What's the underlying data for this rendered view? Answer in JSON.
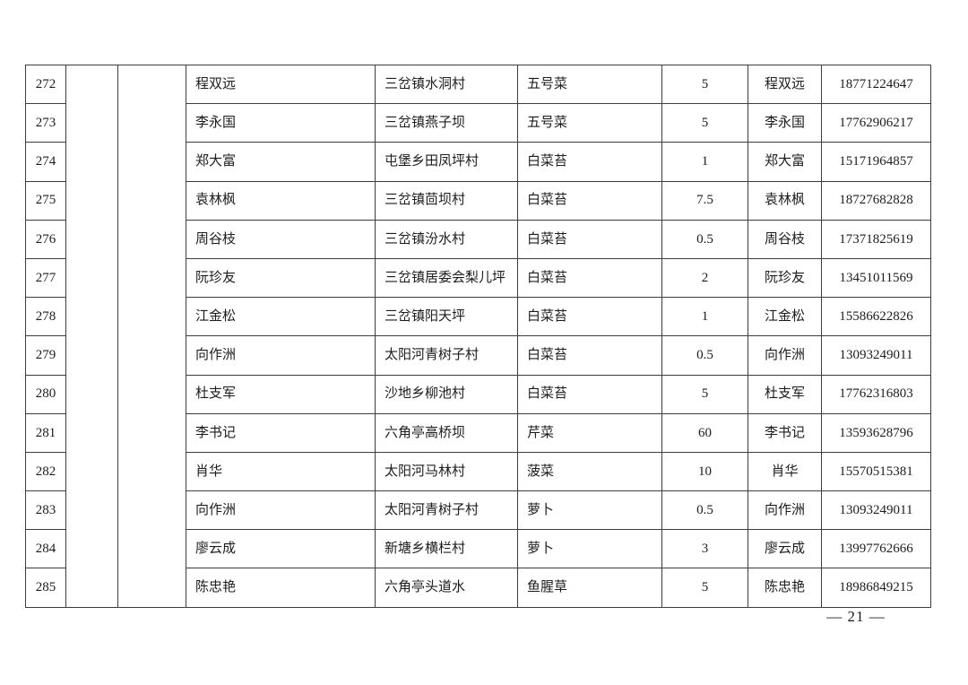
{
  "page_number": "— 21 —",
  "table": {
    "merged_cells": {
      "col2": "",
      "col3": ""
    },
    "rows": [
      {
        "index": "272",
        "name": "程双远",
        "village": "三岔镇水洞村",
        "vegetable": "五号菜",
        "quantity": "5",
        "contact": "程双远",
        "phone": "18771224647"
      },
      {
        "index": "273",
        "name": "李永国",
        "village": "三岔镇燕子坝",
        "vegetable": "五号菜",
        "quantity": "5",
        "contact": "李永国",
        "phone": "17762906217"
      },
      {
        "index": "274",
        "name": "郑大富",
        "village": "屯堡乡田凤坪村",
        "vegetable": "白菜苔",
        "quantity": "1",
        "contact": "郑大富",
        "phone": "15171964857"
      },
      {
        "index": "275",
        "name": "袁林枫",
        "village": "三岔镇茴坝村",
        "vegetable": "白菜苔",
        "quantity": "7.5",
        "contact": "袁林枫",
        "phone": "18727682828"
      },
      {
        "index": "276",
        "name": "周谷枝",
        "village": "三岔镇汾水村",
        "vegetable": "白菜苔",
        "quantity": "0.5",
        "contact": "周谷枝",
        "phone": "17371825619"
      },
      {
        "index": "277",
        "name": "阮珍友",
        "village": "三岔镇居委会梨儿坪",
        "vegetable": "白菜苔",
        "quantity": "2",
        "contact": "阮珍友",
        "phone": "13451011569"
      },
      {
        "index": "278",
        "name": "江金松",
        "village": "三岔镇阳天坪",
        "vegetable": "白菜苔",
        "quantity": "1",
        "contact": "江金松",
        "phone": "15586622826"
      },
      {
        "index": "279",
        "name": "向作洲",
        "village": "太阳河青树子村",
        "vegetable": "白菜苔",
        "quantity": "0.5",
        "contact": "向作洲",
        "phone": "13093249011"
      },
      {
        "index": "280",
        "name": "杜支军",
        "village": "沙地乡柳池村",
        "vegetable": "白菜苔",
        "quantity": "5",
        "contact": "杜支军",
        "phone": "17762316803"
      },
      {
        "index": "281",
        "name": "李书记",
        "village": "六角亭高桥坝",
        "vegetable": "芹菜",
        "quantity": "60",
        "contact": "李书记",
        "phone": "13593628796"
      },
      {
        "index": "282",
        "name": "肖华",
        "village": "太阳河马林村",
        "vegetable": "菠菜",
        "quantity": "10",
        "contact": "肖华",
        "phone": "15570515381"
      },
      {
        "index": "283",
        "name": "向作洲",
        "village": "太阳河青树子村",
        "vegetable": "萝卜",
        "quantity": "0.5",
        "contact": "向作洲",
        "phone": "13093249011"
      },
      {
        "index": "284",
        "name": "廖云成",
        "village": "新塘乡横栏村",
        "vegetable": "萝卜",
        "quantity": "3",
        "contact": "廖云成",
        "phone": "13997762666"
      },
      {
        "index": "285",
        "name": "陈忠艳",
        "village": "六角亭头道水",
        "vegetable": "鱼腥草",
        "quantity": "5",
        "contact": "陈忠艳",
        "phone": "18986849215"
      }
    ]
  }
}
